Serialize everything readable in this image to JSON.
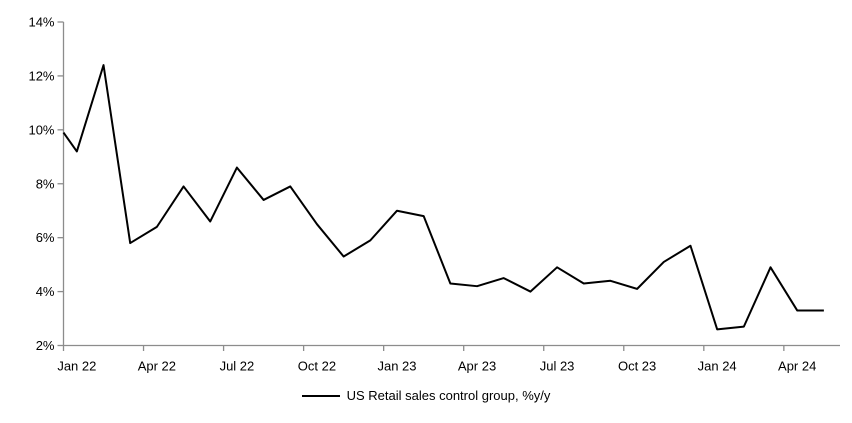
{
  "chart_data": {
    "type": "line",
    "title": "",
    "grid": false,
    "legend_position": "bottom-center",
    "ylim": [
      2,
      14
    ],
    "ytick_step": 2,
    "ytick_labels": [
      "2%",
      "4%",
      "6%",
      "8%",
      "10%",
      "12%",
      "14%"
    ],
    "x": [
      "Jan 22",
      "Feb 22",
      "Mar 22",
      "Apr 22",
      "May 22",
      "Jun 22",
      "Jul 22",
      "Aug 22",
      "Sep 22",
      "Oct 22",
      "Nov 22",
      "Dec 22",
      "Jan 23",
      "Feb 23",
      "Mar 23",
      "Apr 23",
      "May 23",
      "Jun 23",
      "Jul 23",
      "Aug 23",
      "Sep 23",
      "Oct 23",
      "Nov 23",
      "Dec 23",
      "Jan 24",
      "Feb 24",
      "Mar 24",
      "Apr 24",
      "May 24"
    ],
    "xtick_labels": [
      "Jan 22",
      "Apr 22",
      "Jul 22",
      "Oct 22",
      "Jan 23",
      "Apr 23",
      "Jul 23",
      "Oct 23",
      "Jan 24",
      "Apr 24"
    ],
    "xtick_month_indices": [
      0,
      3,
      6,
      9,
      12,
      15,
      18,
      21,
      24,
      27
    ],
    "axis_entry_value": 9.9,
    "series": [
      {
        "name": "US Retail sales control group, %y/y",
        "color": "#000000",
        "values": [
          9.2,
          12.4,
          5.8,
          6.4,
          7.9,
          6.6,
          8.6,
          7.4,
          7.9,
          6.5,
          5.3,
          5.9,
          7.0,
          6.8,
          4.3,
          4.2,
          4.5,
          4.0,
          4.9,
          4.3,
          4.4,
          4.1,
          5.1,
          5.7,
          2.6,
          2.7,
          4.9,
          3.3,
          3.3
        ]
      }
    ]
  },
  "legend": {
    "label": "US Retail sales control group, %y/y"
  },
  "colors": {
    "line": "#000000",
    "axis": "#8c8c8c",
    "text": "#000000",
    "background": "#ffffff"
  }
}
